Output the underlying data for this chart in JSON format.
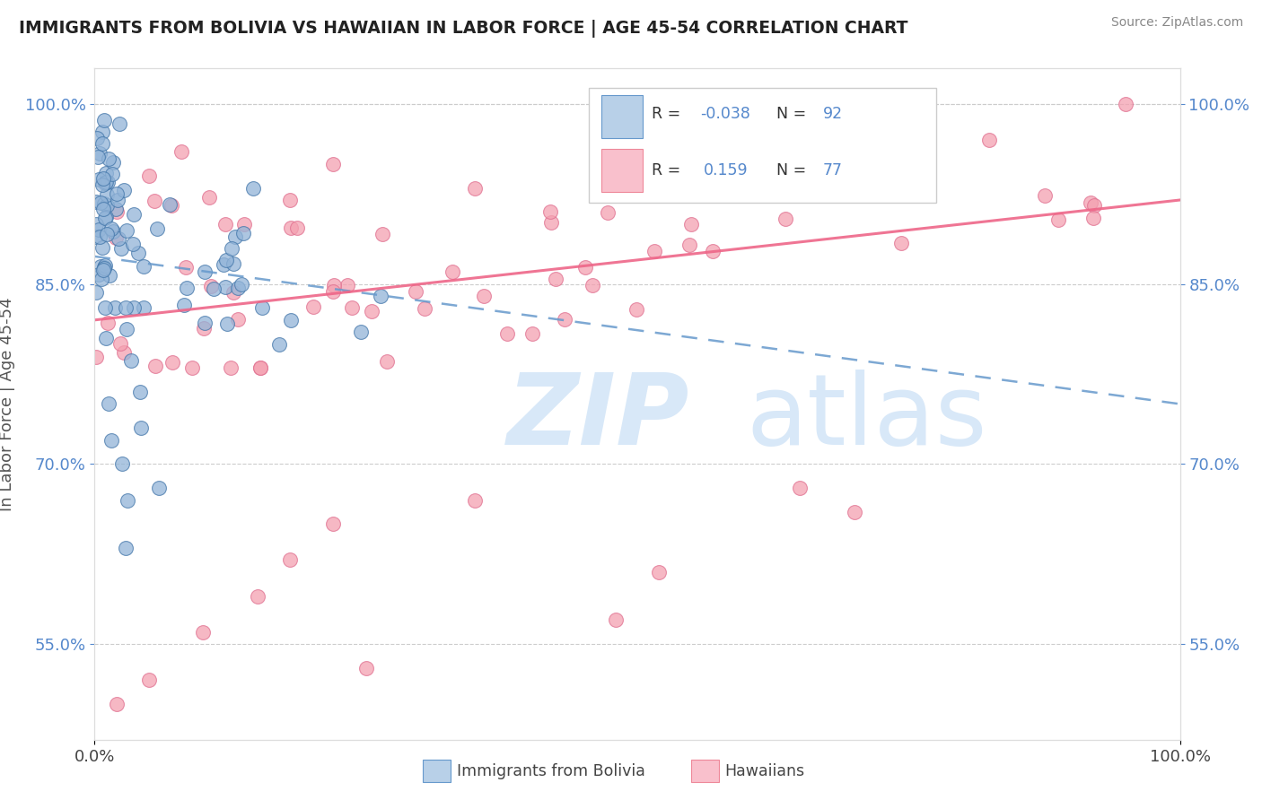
{
  "title": "IMMIGRANTS FROM BOLIVIA VS HAWAIIAN IN LABOR FORCE | AGE 45-54 CORRELATION CHART",
  "source": "Source: ZipAtlas.com",
  "ylabel": "In Labor Force | Age 45-54",
  "xlim": [
    0.0,
    1.0
  ],
  "ylim": [
    0.47,
    1.03
  ],
  "ytick_values": [
    0.55,
    0.7,
    0.85,
    1.0
  ],
  "ytick_labels": [
    "55.0%",
    "70.0%",
    "85.0%",
    "100.0%"
  ],
  "xtick_values": [
    0.0,
    1.0
  ],
  "xtick_labels": [
    "0.0%",
    "100.0%"
  ],
  "bolivia_color": "#92B4D8",
  "bolivia_edge": "#4477AA",
  "hawaii_color": "#F4A0B0",
  "hawaii_edge": "#E07090",
  "bolivia_line_color": "#6699CC",
  "hawaii_line_color": "#EE6688",
  "legend_blue_face": "#B8D0E8",
  "legend_blue_edge": "#6699CC",
  "legend_pink_face": "#F9C0CC",
  "legend_pink_edge": "#EE8899",
  "watermark_color": "#D8E8F8",
  "tick_color": "#5588CC",
  "bolivia_trend_start_y": 0.873,
  "bolivia_trend_end_y": 0.75,
  "hawaii_trend_start_y": 0.82,
  "hawaii_trend_end_y": 0.92
}
